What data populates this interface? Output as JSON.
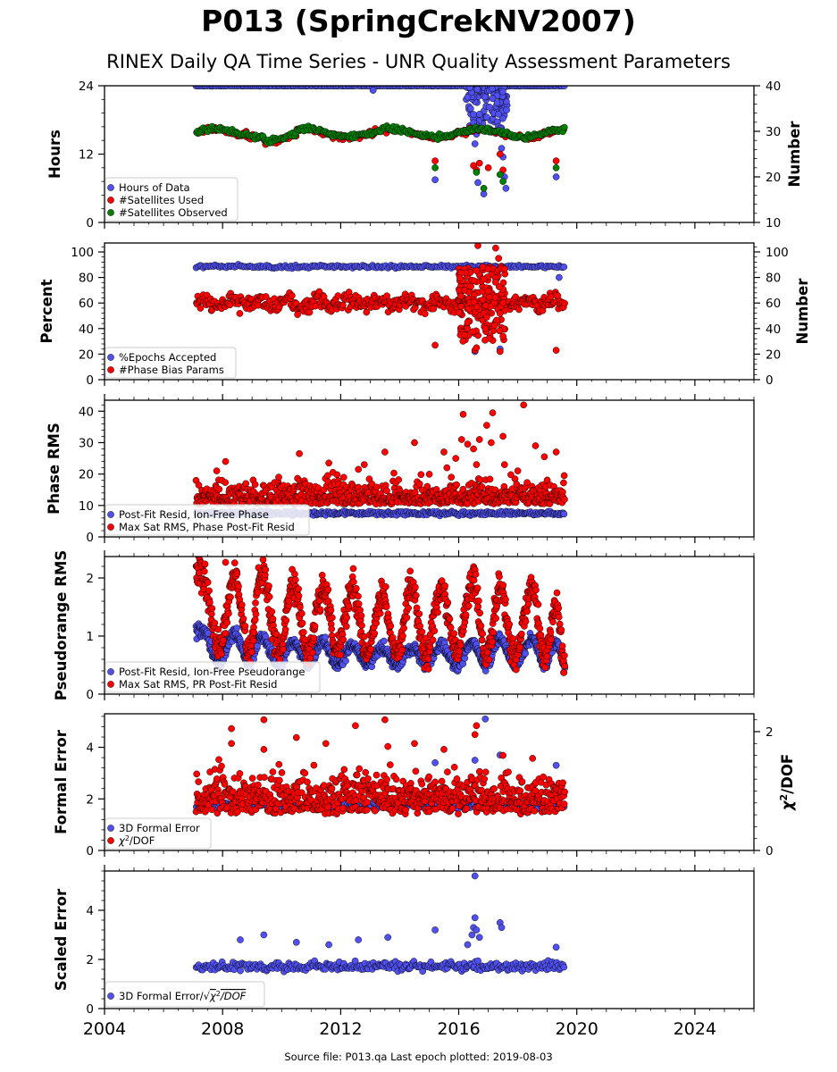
{
  "figure": {
    "title": "P013 (SpringCrekNV2007)",
    "subtitle": "RINEX Daily QA Time Series - UNR Quality Assessment Parameters",
    "footer": "Source file: P013.qa Last epoch plotted: 2019-08-03",
    "colors": {
      "blue": "#5050ee",
      "red": "#ff0000",
      "green": "#008000",
      "edge": "#000000"
    }
  },
  "chart_data": [
    {
      "type": "scatter",
      "xlim": [
        2004,
        2026
      ],
      "x_ticks": [
        2004,
        2008,
        2012,
        2016,
        2020,
        2024
      ],
      "ylabel": "Hours",
      "ylim": [
        0,
        24
      ],
      "y_ticks": [
        0,
        12,
        24
      ],
      "ylabel_right": "Number",
      "ylim_right": [
        10,
        40
      ],
      "y_ticks_right": [
        10,
        20,
        30,
        40
      ],
      "grid": false,
      "legend_position": "lower-left",
      "series": [
        {
          "name": "Hours of Data",
          "color": "blue",
          "axis": "left",
          "marker": "circle",
          "summary": {
            "baseline": 24.0,
            "range": [
              2007.1,
              2019.6
            ]
          },
          "points": [
            [
              2013.1,
              23.2
            ],
            [
              2015.2,
              7.5
            ],
            [
              2016.3,
              22.0
            ],
            [
              2016.4,
              20.0
            ],
            [
              2016.5,
              17.5
            ],
            [
              2016.55,
              13.8
            ],
            [
              2016.6,
              15.5
            ],
            [
              2016.65,
              7.0
            ],
            [
              2016.7,
              19.0
            ],
            [
              2016.85,
              5.0
            ],
            [
              2016.9,
              16.0
            ],
            [
              2016.95,
              18.5
            ],
            [
              2017.3,
              21.0
            ],
            [
              2017.35,
              19.0
            ],
            [
              2017.4,
              16.5
            ],
            [
              2017.45,
              13.0
            ],
            [
              2017.5,
              11.5
            ],
            [
              2017.55,
              8.0
            ],
            [
              2017.6,
              6.0
            ],
            [
              2019.3,
              8.0
            ]
          ]
        },
        {
          "name": "#Satellites Used",
          "color": "red",
          "axis": "right",
          "marker": "circle",
          "summary": {
            "baseline": 29.5,
            "range": [
              2007.1,
              2019.6
            ]
          },
          "points": [
            [
              2008.8,
              30.0
            ],
            [
              2015.2,
              23.5
            ],
            [
              2016.5,
              22.5
            ],
            [
              2016.6,
              21.5
            ],
            [
              2016.7,
              23.0
            ],
            [
              2017.0,
              22.0
            ],
            [
              2017.4,
              25.0
            ],
            [
              2017.5,
              21.5
            ],
            [
              2019.3,
              23.5
            ]
          ]
        },
        {
          "name": "#Satellites Observed",
          "color": "green",
          "axis": "right",
          "marker": "circle",
          "summary": {
            "baseline": 30.0,
            "range": [
              2007.1,
              2019.6
            ]
          },
          "points": [
            [
              2015.2,
              22.0
            ],
            [
              2016.6,
              21.0
            ],
            [
              2016.85,
              17.5
            ],
            [
              2017.4,
              20.5
            ],
            [
              2017.5,
              19.0
            ],
            [
              2019.3,
              22.0
            ]
          ]
        }
      ]
    },
    {
      "type": "scatter",
      "xlim": [
        2004,
        2026
      ],
      "x_ticks": [
        2004,
        2008,
        2012,
        2016,
        2020,
        2024
      ],
      "ylabel": "Percent",
      "ylim": [
        0,
        107
      ],
      "y_ticks": [
        0,
        20,
        40,
        60,
        80,
        100
      ],
      "ylabel_right": "Number",
      "ylim_right": [
        0,
        107
      ],
      "y_ticks_right": [
        0,
        20,
        40,
        60,
        80,
        100
      ],
      "grid": false,
      "legend_position": "lower-left",
      "series": [
        {
          "name": "%Epochs Accepted",
          "color": "blue",
          "axis": "left",
          "marker": "circle",
          "summary": {
            "baseline": 88.0,
            "range": [
              2007.1,
              2019.6
            ]
          },
          "points": [
            [
              2016.55,
              22.0
            ],
            [
              2017.4,
              24.0
            ],
            [
              2019.4,
              80.0
            ]
          ]
        },
        {
          "name": "#Phase Bias Params",
          "color": "red",
          "axis": "right",
          "marker": "circle",
          "summary": {
            "baseline": 60.0,
            "range": [
              2007.1,
              2019.6
            ]
          },
          "points": [
            [
              2015.2,
              27.0
            ],
            [
              2016.3,
              45.0
            ],
            [
              2016.55,
              23.0
            ],
            [
              2016.6,
              25.0
            ],
            [
              2016.65,
              105.0
            ],
            [
              2016.9,
              40.0
            ],
            [
              2017.25,
              103.0
            ],
            [
              2017.35,
              95.0
            ],
            [
              2017.4,
              22.0
            ],
            [
              2017.5,
              34.0
            ],
            [
              2019.3,
              23.0
            ]
          ]
        }
      ]
    },
    {
      "type": "scatter",
      "xlim": [
        2004,
        2026
      ],
      "x_ticks": [
        2004,
        2008,
        2012,
        2016,
        2020,
        2024
      ],
      "ylabel": "Phase RMS",
      "ylim": [
        0,
        43.5
      ],
      "y_ticks": [
        0,
        10,
        20,
        30,
        40
      ],
      "grid": false,
      "legend_position": "lower-left",
      "series": [
        {
          "name": "Post-Fit Resid, Ion-Free Phase",
          "color": "blue",
          "axis": "left",
          "marker": "circle",
          "summary": {
            "baseline": 7.5,
            "range": [
              2007.1,
              2019.6
            ]
          },
          "points": []
        },
        {
          "name": "Max Sat RMS, Phase Post-Fit Resid",
          "color": "red",
          "axis": "left",
          "marker": "circle",
          "summary": {
            "baseline": 11.0,
            "range": [
              2007.1,
              2019.6
            ]
          },
          "points": [
            [
              2007.8,
              21.0
            ],
            [
              2008.1,
              24.0
            ],
            [
              2009.9,
              19.0
            ],
            [
              2010.6,
              26.5
            ],
            [
              2011.6,
              23.5
            ],
            [
              2012.6,
              21.5
            ],
            [
              2012.8,
              23.0
            ],
            [
              2013.5,
              27.0
            ],
            [
              2014.5,
              30.0
            ],
            [
              2015.5,
              27.0
            ],
            [
              2015.6,
              22.0
            ],
            [
              2015.9,
              25.0
            ],
            [
              2016.1,
              31.0
            ],
            [
              2016.15,
              39.0
            ],
            [
              2016.3,
              29.5
            ],
            [
              2016.5,
              28.0
            ],
            [
              2016.6,
              23.0
            ],
            [
              2016.7,
              31.0
            ],
            [
              2016.95,
              35.5
            ],
            [
              2017.1,
              30.0
            ],
            [
              2017.15,
              39.5
            ],
            [
              2017.5,
              32.0
            ],
            [
              2017.55,
              23.0
            ],
            [
              2018.0,
              21.0
            ],
            [
              2018.2,
              42.0
            ],
            [
              2018.6,
              29.0
            ],
            [
              2018.9,
              25.5
            ],
            [
              2019.3,
              27.0
            ]
          ]
        }
      ]
    },
    {
      "type": "scatter",
      "xlim": [
        2004,
        2026
      ],
      "x_ticks": [
        2004,
        2008,
        2012,
        2016,
        2020,
        2024
      ],
      "ylabel": "Pseudorange RMS",
      "ylim": [
        0,
        2.37
      ],
      "y_ticks": [
        0,
        1,
        2
      ],
      "grid": false,
      "legend_position": "lower-left",
      "series": [
        {
          "name": "Post-Fit Resid, Ion-Free Pseudorange",
          "color": "blue",
          "axis": "left",
          "marker": "circle",
          "summary": {
            "pattern": "annual oscillation",
            "range": [
              2007.1,
              2019.6
            ],
            "peaks": [
              [
                2007.3,
                1.1
              ],
              [
                2008.4,
                1.05
              ],
              [
                2009.3,
                1.0
              ],
              [
                2010.4,
                0.9
              ],
              [
                2011.4,
                0.9
              ],
              [
                2012.4,
                0.85
              ],
              [
                2013.4,
                0.8
              ],
              [
                2014.4,
                0.8
              ],
              [
                2015.4,
                0.85
              ],
              [
                2016.5,
                0.9
              ],
              [
                2017.4,
                0.95
              ],
              [
                2018.5,
                0.95
              ],
              [
                2019.3,
                0.9
              ]
            ],
            "troughs": [
              [
                2007.9,
                0.55
              ],
              [
                2008.9,
                0.55
              ],
              [
                2009.9,
                0.5
              ],
              [
                2010.9,
                0.5
              ],
              [
                2011.9,
                0.5
              ],
              [
                2012.9,
                0.5
              ],
              [
                2013.9,
                0.5
              ],
              [
                2014.9,
                0.5
              ],
              [
                2015.9,
                0.5
              ],
              [
                2016.9,
                0.5
              ],
              [
                2017.9,
                0.5
              ],
              [
                2018.9,
                0.5
              ],
              [
                2019.6,
                0.45
              ]
            ]
          },
          "points": []
        },
        {
          "name": "Max Sat RMS, PR Post-Fit Resid",
          "color": "red",
          "axis": "left",
          "marker": "circle",
          "summary": {
            "pattern": "annual oscillation",
            "range": [
              2007.1,
              2019.6
            ],
            "peaks": [
              [
                2007.3,
                2.1
              ],
              [
                2008.4,
                2.05
              ],
              [
                2009.3,
                2.1
              ],
              [
                2010.4,
                1.9
              ],
              [
                2011.4,
                1.85
              ],
              [
                2012.4,
                1.85
              ],
              [
                2013.4,
                1.65
              ],
              [
                2014.4,
                1.85
              ],
              [
                2015.4,
                1.8
              ],
              [
                2016.5,
                2.0
              ],
              [
                2017.4,
                1.8
              ],
              [
                2018.5,
                1.85
              ],
              [
                2019.3,
                1.5
              ]
            ],
            "troughs": [
              [
                2007.9,
                0.8
              ],
              [
                2008.9,
                0.75
              ],
              [
                2009.9,
                0.75
              ],
              [
                2010.9,
                0.7
              ],
              [
                2011.9,
                0.75
              ],
              [
                2012.9,
                0.75
              ],
              [
                2013.9,
                0.7
              ],
              [
                2014.9,
                0.7
              ],
              [
                2015.9,
                0.7
              ],
              [
                2016.9,
                0.6
              ],
              [
                2017.9,
                0.65
              ],
              [
                2018.9,
                0.65
              ],
              [
                2019.6,
                0.5
              ]
            ]
          },
          "points": [
            [
              2008.1,
              2.27
            ]
          ]
        }
      ]
    },
    {
      "type": "scatter",
      "xlim": [
        2004,
        2026
      ],
      "x_ticks": [
        2004,
        2008,
        2012,
        2016,
        2020,
        2024
      ],
      "ylabel": "Formal Error",
      "ylim": [
        0,
        5.3
      ],
      "y_ticks": [
        0,
        2,
        4
      ],
      "ylabel_right": "χ²/DOF",
      "ylim_right": [
        0,
        2.3
      ],
      "y_ticks_right": [
        0,
        2
      ],
      "grid": false,
      "legend_position": "lower-left",
      "series": [
        {
          "name": "3D Formal Error",
          "color": "blue",
          "axis": "left",
          "marker": "circle",
          "summary": {
            "baseline": 1.7,
            "range": [
              2007.1,
              2019.6
            ]
          },
          "points": [
            [
              2015.2,
              3.4
            ],
            [
              2016.55,
              3.5
            ],
            [
              2016.9,
              5.1
            ],
            [
              2017.4,
              3.7
            ],
            [
              2019.3,
              3.3
            ]
          ]
        },
        {
          "name": "χ²/DOF",
          "color": "red",
          "axis": "right",
          "marker": "circle",
          "summary": {
            "baseline": 0.8,
            "range": [
              2007.1,
              2019.6
            ]
          },
          "points": [
            [
              2008.3,
              2.05
            ],
            [
              2008.3,
              1.8
            ],
            [
              2009.4,
              2.2
            ],
            [
              2009.4,
              1.7
            ],
            [
              2010.5,
              1.9
            ],
            [
              2011.5,
              1.8
            ],
            [
              2012.5,
              2.1
            ],
            [
              2013.5,
              2.2
            ],
            [
              2013.6,
              1.75
            ],
            [
              2014.5,
              1.8
            ],
            [
              2015.5,
              1.7
            ],
            [
              2016.55,
              1.95
            ],
            [
              2016.6,
              2.1
            ],
            [
              2017.5,
              1.6
            ],
            [
              2018.5,
              1.55
            ]
          ]
        }
      ]
    },
    {
      "type": "scatter",
      "xlim": [
        2004,
        2026
      ],
      "x_ticks": [
        2004,
        2008,
        2012,
        2016,
        2020,
        2024
      ],
      "x_tick_labels": [
        "2004",
        "2008",
        "2012",
        "2016",
        "2020",
        "2024"
      ],
      "ylabel": "Scaled Error",
      "ylim": [
        0,
        5.6
      ],
      "y_ticks": [
        0,
        2,
        4
      ],
      "grid": false,
      "legend_position": "lower-left",
      "series": [
        {
          "name": "3D Formal Error/√χ²/DOF",
          "color": "blue",
          "axis": "left",
          "marker": "circle",
          "summary": {
            "baseline": 1.7,
            "range": [
              2007.1,
              2019.6
            ]
          },
          "points": [
            [
              2008.6,
              2.8
            ],
            [
              2009.4,
              3.0
            ],
            [
              2010.5,
              2.7
            ],
            [
              2011.6,
              2.6
            ],
            [
              2012.6,
              2.8
            ],
            [
              2013.6,
              2.9
            ],
            [
              2015.2,
              3.2
            ],
            [
              2016.3,
              2.6
            ],
            [
              2016.45,
              3.0
            ],
            [
              2016.5,
              3.3
            ],
            [
              2016.55,
              3.7
            ],
            [
              2016.55,
              5.4
            ],
            [
              2016.6,
              3.2
            ],
            [
              2016.7,
              2.9
            ],
            [
              2017.4,
              3.5
            ],
            [
              2017.45,
              3.3
            ],
            [
              2019.3,
              2.5
            ]
          ]
        }
      ]
    }
  ]
}
